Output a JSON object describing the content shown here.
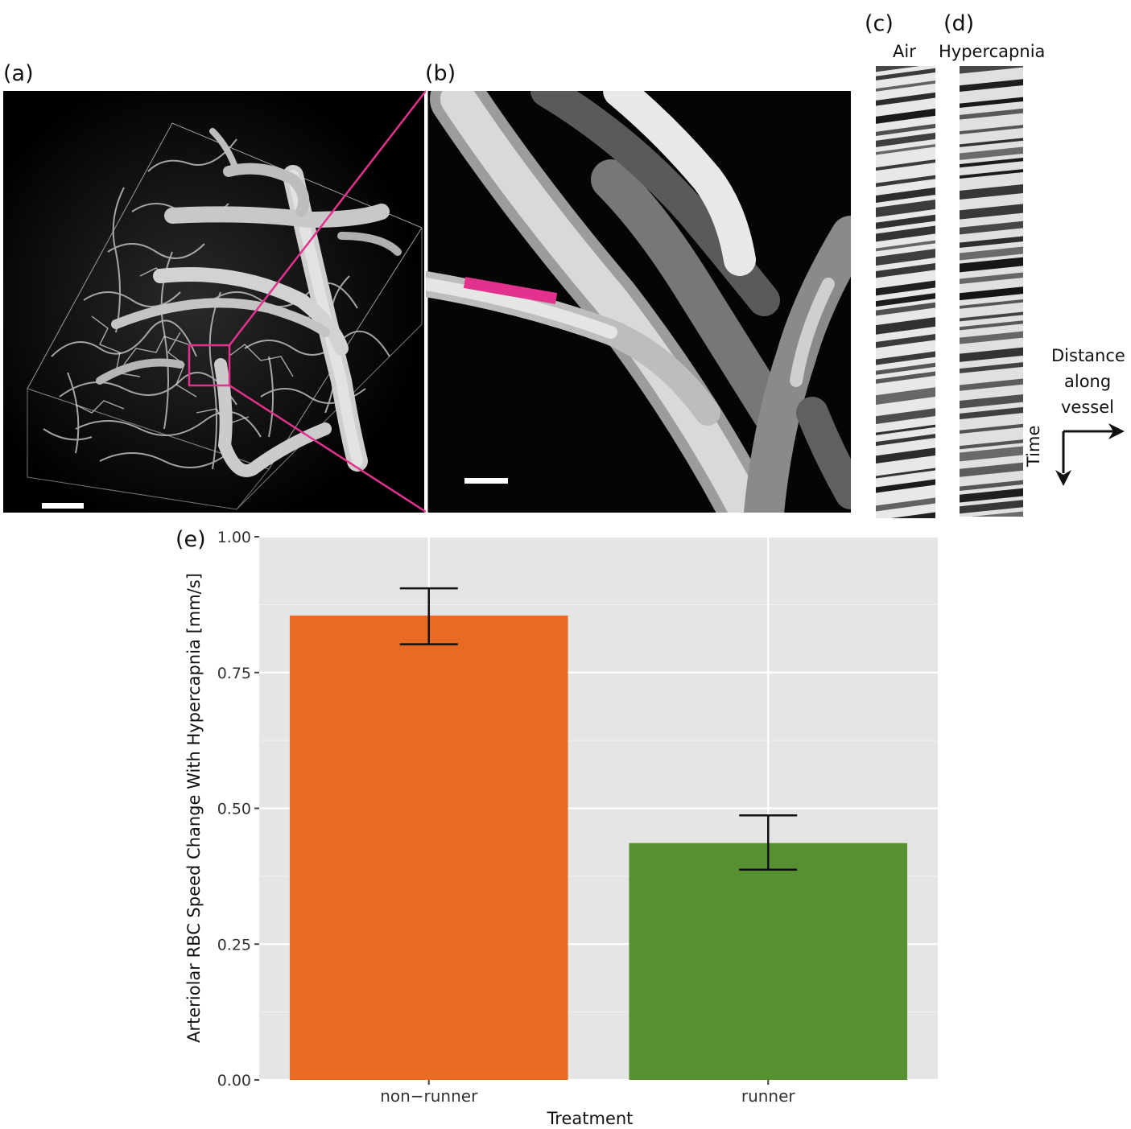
{
  "panels": {
    "a": "(a)",
    "b": "(b)",
    "c": "(c)",
    "d": "(d)",
    "e": "(e)"
  },
  "kymograph": {
    "air_label": "Air",
    "hypercapnia_label": "Hypercapnia",
    "distance_label_lines": [
      "Distance",
      "along",
      "vessel"
    ],
    "time_label": "Time"
  },
  "colors": {
    "highlight": "#e2328e",
    "non_runner": "#e86a23",
    "runner": "#569031",
    "plot_bg": "#e5e5e5"
  },
  "chart_data": {
    "type": "bar",
    "categories": [
      "non−runner",
      "runner"
    ],
    "values": [
      0.855,
      0.436
    ],
    "error_low": [
      0.802,
      0.387
    ],
    "error_high": [
      0.905,
      0.487
    ],
    "colors": [
      "#e86a23",
      "#569031"
    ],
    "xlabel": "Treatment",
    "ylabel": "Arteriolar RBC Speed Change With Hypercapnia [mm/s]",
    "ylim": [
      0,
      1.0
    ],
    "yticks": [
      0.0,
      0.25,
      0.5,
      0.75,
      1.0
    ],
    "ytick_labels": [
      "0.00",
      "0.25",
      "0.50",
      "0.75",
      "1.00"
    ],
    "grid": true
  }
}
